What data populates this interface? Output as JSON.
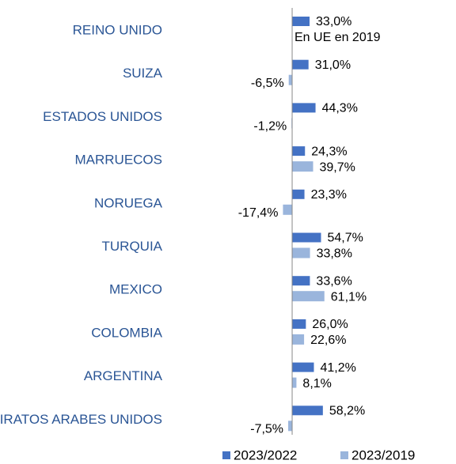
{
  "chart_data": {
    "type": "hbar",
    "categories": [
      "REINO UNIDO",
      "SUIZA",
      "ESTADOS UNIDOS",
      "MARRUECOS",
      "NORUEGA",
      "TURQUIA",
      "MEXICO",
      "COLOMBIA",
      "ARGENTINA",
      "EMIRATOS ARABES UNIDOS"
    ],
    "series": [
      {
        "name": "2023/2022",
        "color": "#4472c4",
        "values": [
          33.0,
          31.0,
          44.3,
          24.3,
          23.3,
          54.7,
          33.6,
          26.0,
          41.2,
          58.2
        ],
        "value_labels": [
          "33,0%",
          "31,0%",
          "44,3%",
          "24,3%",
          "23,3%",
          "54,7%",
          "33,6%",
          "26,0%",
          "41,2%",
          "58,2%"
        ]
      },
      {
        "name": "2023/2019",
        "color": "#9ab5dc",
        "values": [
          null,
          -6.5,
          -1.2,
          39.7,
          -17.4,
          33.8,
          61.1,
          22.6,
          8.1,
          -7.5
        ],
        "value_labels": [
          null,
          "-6,5%",
          "-1,2%",
          "39,7%",
          "-17,4%",
          "33,8%",
          "61,1%",
          "22,6%",
          "8,1%",
          "-7,5%"
        ]
      }
    ],
    "annotations": [
      "En UE en 2019"
    ],
    "xlim": [
      -20,
      70
    ],
    "legend": "bottom"
  }
}
